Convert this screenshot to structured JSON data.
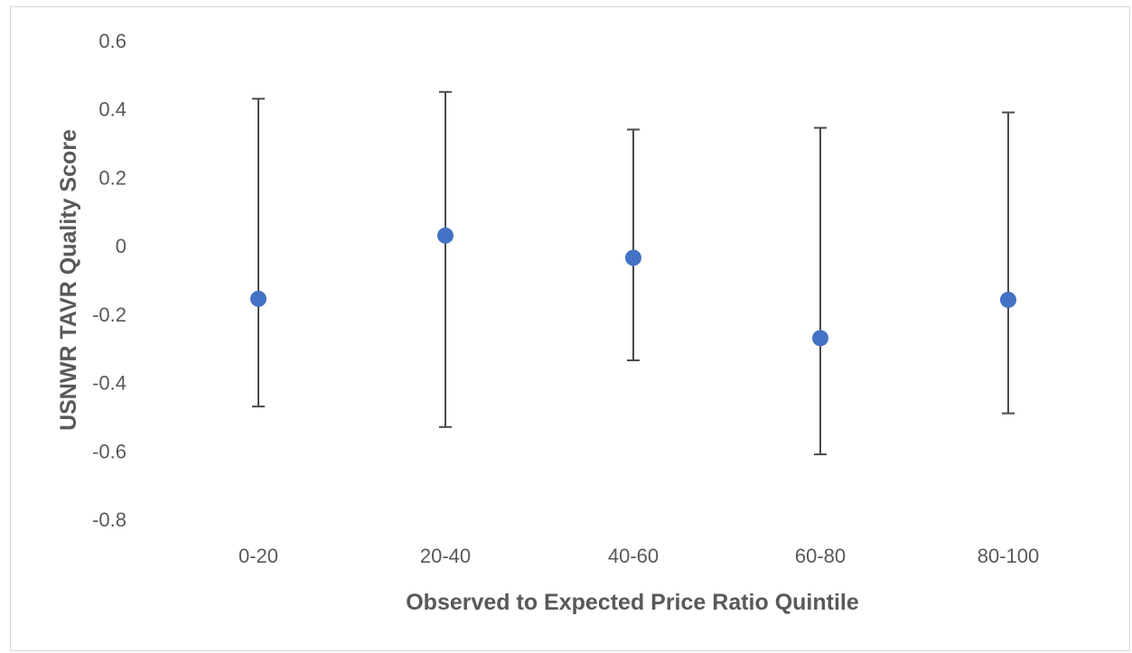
{
  "chart_data": {
    "type": "scatter",
    "title": "",
    "xlabel": "Observed to Expected Price Ratio Quintile",
    "ylabel": "USNWR TAVR Quality Score",
    "categories": [
      "0-20",
      "20-40",
      "40-60",
      "60-80",
      "80-100"
    ],
    "values": [
      -0.155,
      0.03,
      -0.035,
      -0.27,
      -0.158
    ],
    "error_upper": [
      0.43,
      0.45,
      0.34,
      0.345,
      0.39
    ],
    "error_lower": [
      -0.47,
      -0.53,
      -0.335,
      -0.61,
      -0.49
    ],
    "ylim": [
      -0.8,
      0.6
    ],
    "yticks": [
      "0.6",
      "0.4",
      "0.2",
      "0",
      "-0.2",
      "-0.4",
      "-0.6",
      "-0.8"
    ],
    "ytick_values": [
      0.6,
      0.4,
      0.2,
      0,
      -0.2,
      -0.4,
      -0.6,
      -0.8
    ],
    "grid": false,
    "legend": "none",
    "colors": {
      "marker": "#4472c4",
      "error_bar": "#4a4a4a",
      "text": "#595959",
      "border": "#d9d9d9"
    }
  }
}
